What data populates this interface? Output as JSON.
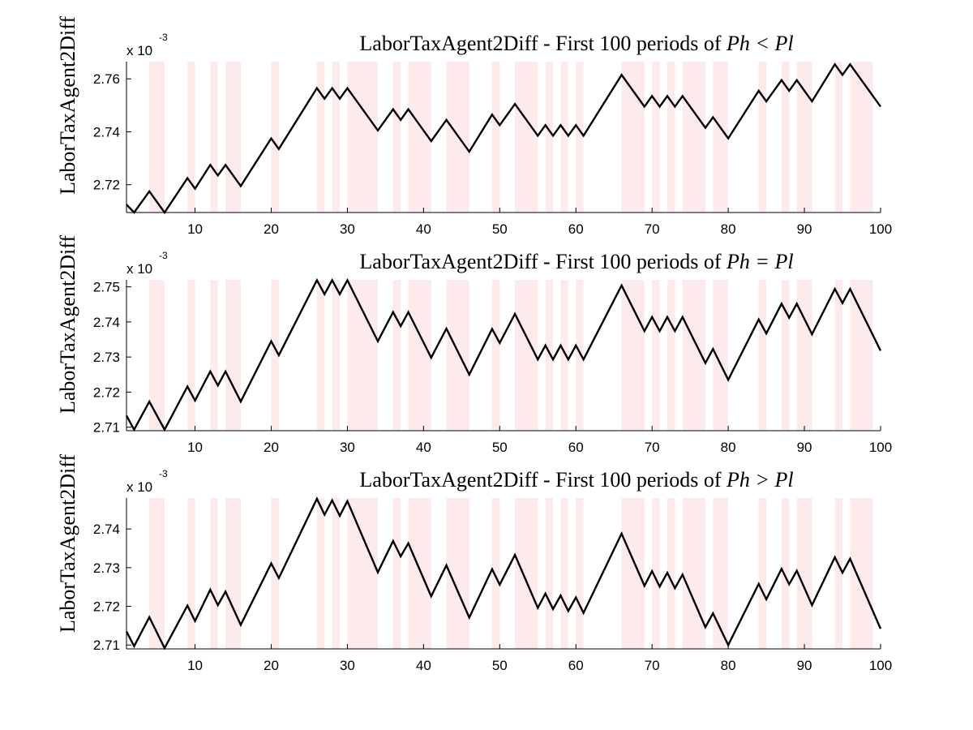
{
  "chart_data": [
    {
      "type": "line",
      "title_prefix": "LaborTaxAgent2Diff - First 100 periods of",
      "title_math": "Ph < Pl",
      "ylabel": "LaborTaxAgent2Diff",
      "exponent_base": "x 10",
      "exponent_power": "-3",
      "xlim": [
        1,
        100
      ],
      "ylim": [
        2.7095,
        2.7665
      ],
      "yticks": [
        2.72,
        2.74,
        2.76
      ],
      "ytick_labels": [
        "2.72",
        "2.74",
        "2.76"
      ],
      "xticks": [
        10,
        20,
        30,
        40,
        50,
        60,
        70,
        80,
        90,
        100
      ],
      "xtick_labels": [
        "10",
        "20",
        "30",
        "40",
        "50",
        "60",
        "70",
        "80",
        "90",
        "100"
      ],
      "series": [
        {
          "color": "#000000",
          "x": [
            1,
            2,
            4,
            6,
            9,
            10,
            12,
            13,
            14,
            16,
            20,
            21,
            26,
            27,
            28,
            29,
            30,
            34,
            36,
            37,
            38,
            41,
            43,
            46,
            49,
            50,
            52,
            55,
            56,
            57,
            58,
            59,
            60,
            61,
            66,
            69,
            70,
            71,
            72,
            73,
            74,
            77,
            78,
            80,
            84,
            85,
            87,
            88,
            89,
            91,
            94,
            95,
            96,
            100
          ],
          "y": [
            2.7125,
            2.7095,
            2.7175,
            2.7095,
            2.7225,
            2.7185,
            2.7275,
            2.7235,
            2.7275,
            2.7195,
            2.7375,
            2.7335,
            2.7565,
            2.7525,
            2.7565,
            2.7525,
            2.7565,
            2.7405,
            2.7485,
            2.7445,
            2.7485,
            2.7365,
            2.7445,
            2.7325,
            2.7465,
            2.7425,
            2.7505,
            2.7385,
            2.7425,
            2.7385,
            2.7425,
            2.7385,
            2.7425,
            2.7385,
            2.7615,
            2.7495,
            2.7535,
            2.7495,
            2.7535,
            2.7495,
            2.7535,
            2.7415,
            2.7455,
            2.7375,
            2.7555,
            2.7515,
            2.7595,
            2.7555,
            2.7595,
            2.7515,
            2.7655,
            2.7615,
            2.7655,
            2.7495
          ]
        }
      ],
      "shaded_periods": [
        [
          4,
          6
        ],
        [
          9,
          10
        ],
        [
          12,
          13
        ],
        [
          14,
          16
        ],
        [
          20,
          21
        ],
        [
          26,
          27
        ],
        [
          28,
          29
        ],
        [
          30,
          34
        ],
        [
          36,
          37
        ],
        [
          38,
          41
        ],
        [
          43,
          46
        ],
        [
          49,
          50
        ],
        [
          52,
          55
        ],
        [
          56,
          57
        ],
        [
          58,
          59
        ],
        [
          60,
          61
        ],
        [
          66,
          69
        ],
        [
          70,
          71
        ],
        [
          72,
          73
        ],
        [
          74,
          77
        ],
        [
          78,
          80
        ],
        [
          84,
          85
        ],
        [
          87,
          88
        ],
        [
          89,
          91
        ],
        [
          94,
          95
        ],
        [
          96,
          99
        ]
      ],
      "shade_color": "#fdeaea",
      "grid": false
    },
    {
      "type": "line",
      "title_prefix": "LaborTaxAgent2Diff - First 100 periods of",
      "title_math": "Ph = Pl",
      "ylabel": "LaborTaxAgent2Diff",
      "exponent_base": "x 10",
      "exponent_power": "-3",
      "xlim": [
        1,
        100
      ],
      "ylim": [
        2.709,
        2.752
      ],
      "yticks": [
        2.71,
        2.72,
        2.73,
        2.74,
        2.75
      ],
      "ytick_labels": [
        "2.71",
        "2.72",
        "2.73",
        "2.74",
        "2.75"
      ],
      "xticks": [
        10,
        20,
        30,
        40,
        50,
        60,
        70,
        80,
        90,
        100
      ],
      "xtick_labels": [
        "10",
        "20",
        "30",
        "40",
        "50",
        "60",
        "70",
        "80",
        "90",
        "100"
      ],
      "series": [
        {
          "color": "#000000",
          "x": [
            1,
            2,
            4,
            6,
            9,
            10,
            12,
            13,
            14,
            16,
            20,
            21,
            26,
            27,
            28,
            29,
            30,
            34,
            36,
            37,
            38,
            41,
            43,
            46,
            49,
            50,
            52,
            55,
            56,
            57,
            58,
            59,
            60,
            61,
            66,
            69,
            70,
            71,
            72,
            73,
            74,
            77,
            78,
            80,
            84,
            85,
            87,
            88,
            89,
            91,
            94,
            95,
            96,
            100
          ],
          "y": [
            2.7133,
            2.7093,
            2.7173,
            2.7093,
            2.7216,
            2.7176,
            2.7259,
            2.7219,
            2.7259,
            2.7173,
            2.7345,
            2.7305,
            2.7519,
            2.7479,
            2.7519,
            2.7479,
            2.7519,
            2.7345,
            2.7428,
            2.7388,
            2.7428,
            2.7298,
            2.7381,
            2.725,
            2.738,
            2.734,
            2.7423,
            2.7293,
            2.7333,
            2.7293,
            2.7333,
            2.7293,
            2.7333,
            2.7293,
            2.7504,
            2.7374,
            2.7414,
            2.7374,
            2.7414,
            2.7374,
            2.7414,
            2.7283,
            2.7323,
            2.7235,
            2.7407,
            2.7367,
            2.7452,
            2.7412,
            2.7452,
            2.7365,
            2.7494,
            2.7454,
            2.7494,
            2.7318
          ]
        }
      ],
      "shaded_periods": [
        [
          4,
          6
        ],
        [
          9,
          10
        ],
        [
          12,
          13
        ],
        [
          14,
          16
        ],
        [
          20,
          21
        ],
        [
          26,
          27
        ],
        [
          28,
          29
        ],
        [
          30,
          34
        ],
        [
          36,
          37
        ],
        [
          38,
          41
        ],
        [
          43,
          46
        ],
        [
          49,
          50
        ],
        [
          52,
          55
        ],
        [
          56,
          57
        ],
        [
          58,
          59
        ],
        [
          60,
          61
        ],
        [
          66,
          69
        ],
        [
          70,
          71
        ],
        [
          72,
          73
        ],
        [
          74,
          77
        ],
        [
          78,
          80
        ],
        [
          84,
          85
        ],
        [
          87,
          88
        ],
        [
          89,
          91
        ],
        [
          94,
          95
        ],
        [
          96,
          99
        ]
      ],
      "shade_color": "#fdeaea",
      "grid": false
    },
    {
      "type": "line",
      "title_prefix": "LaborTaxAgent2Diff - First 100 periods of",
      "title_math": "Ph > Pl",
      "ylabel": "LaborTaxAgent2Diff",
      "exponent_base": "x 10",
      "exponent_power": "-3",
      "xlim": [
        1,
        100
      ],
      "ylim": [
        2.709,
        2.748
      ],
      "yticks": [
        2.71,
        2.72,
        2.73,
        2.74
      ],
      "ytick_labels": [
        "2.71",
        "2.72",
        "2.73",
        "2.74"
      ],
      "xticks": [
        10,
        20,
        30,
        40,
        50,
        60,
        70,
        80,
        90,
        100
      ],
      "xtick_labels": [
        "10",
        "20",
        "30",
        "40",
        "50",
        "60",
        "70",
        "80",
        "90",
        "100"
      ],
      "series": [
        {
          "color": "#000000",
          "x": [
            1,
            2,
            4,
            6,
            9,
            10,
            12,
            13,
            14,
            16,
            20,
            21,
            26,
            27,
            28,
            29,
            30,
            34,
            36,
            37,
            38,
            41,
            43,
            46,
            49,
            50,
            52,
            55,
            56,
            57,
            58,
            59,
            60,
            61,
            66,
            69,
            70,
            71,
            72,
            73,
            74,
            77,
            78,
            80,
            84,
            85,
            87,
            88,
            89,
            91,
            94,
            95,
            96,
            100
          ],
          "y": [
            2.7135,
            2.7097,
            2.7172,
            2.7092,
            2.7202,
            2.7162,
            2.7243,
            2.7203,
            2.7238,
            2.7152,
            2.7311,
            2.7273,
            2.7478,
            2.7437,
            2.7474,
            2.7434,
            2.7472,
            2.7288,
            2.7369,
            2.7329,
            2.7363,
            2.7226,
            2.7306,
            2.7171,
            2.7296,
            2.7256,
            2.7333,
            2.7196,
            2.7233,
            2.7193,
            2.7228,
            2.7188,
            2.7223,
            2.7183,
            2.7388,
            2.7253,
            2.7291,
            2.7251,
            2.7287,
            2.7247,
            2.7282,
            2.7146,
            2.7182,
            2.71,
            2.7258,
            2.7218,
            2.7297,
            2.7257,
            2.7292,
            2.7203,
            2.7327,
            2.7287,
            2.7323,
            2.7142
          ]
        }
      ],
      "shaded_periods": [
        [
          4,
          6
        ],
        [
          9,
          10
        ],
        [
          12,
          13
        ],
        [
          14,
          16
        ],
        [
          20,
          21
        ],
        [
          26,
          27
        ],
        [
          28,
          29
        ],
        [
          30,
          34
        ],
        [
          36,
          37
        ],
        [
          38,
          41
        ],
        [
          43,
          46
        ],
        [
          49,
          50
        ],
        [
          52,
          55
        ],
        [
          56,
          57
        ],
        [
          58,
          59
        ],
        [
          60,
          61
        ],
        [
          66,
          69
        ],
        [
          70,
          71
        ],
        [
          72,
          73
        ],
        [
          74,
          77
        ],
        [
          78,
          80
        ],
        [
          84,
          85
        ],
        [
          87,
          88
        ],
        [
          89,
          91
        ],
        [
          94,
          95
        ],
        [
          96,
          99
        ]
      ],
      "shade_color": "#fdeaea",
      "grid": false
    }
  ]
}
